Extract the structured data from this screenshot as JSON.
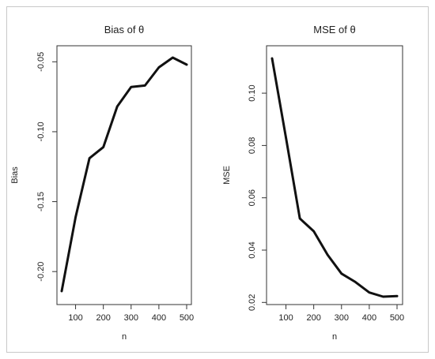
{
  "chart_data": [
    {
      "type": "line",
      "title": "Bias of θ",
      "xlabel": "n",
      "ylabel": "Bias",
      "x": [
        50,
        100,
        150,
        200,
        250,
        300,
        350,
        400,
        450,
        500
      ],
      "series": [
        {
          "values": [
            -0.214,
            -0.161,
            -0.119,
            -0.111,
            -0.082,
            -0.068,
            -0.067,
            -0.054,
            -0.047,
            -0.052
          ]
        }
      ],
      "xticks": [
        "100",
        "200",
        "300",
        "400",
        "500"
      ],
      "yticks": [
        "-0.20",
        "-0.15",
        "-0.10",
        "-0.05"
      ],
      "xlim": [
        50,
        500
      ],
      "ylim": [
        -0.214,
        -0.047
      ],
      "grid": false,
      "color": "#111111"
    },
    {
      "type": "line",
      "title": "MSE of θ",
      "xlabel": "n",
      "ylabel": "MSE",
      "x": [
        50,
        100,
        150,
        200,
        250,
        300,
        350,
        400,
        450,
        500
      ],
      "series": [
        {
          "values": [
            0.1133,
            0.0829,
            0.0521,
            0.0472,
            0.0382,
            0.031,
            0.0278,
            0.0238,
            0.0222,
            0.0224
          ]
        }
      ],
      "xticks": [
        "100",
        "200",
        "300",
        "400",
        "500"
      ],
      "yticks": [
        "0.02",
        "0.04",
        "0.06",
        "0.08",
        "0.10"
      ],
      "xlim": [
        50,
        500
      ],
      "ylim": [
        0.0222,
        0.1133
      ],
      "grid": false,
      "color": "#111111"
    }
  ]
}
